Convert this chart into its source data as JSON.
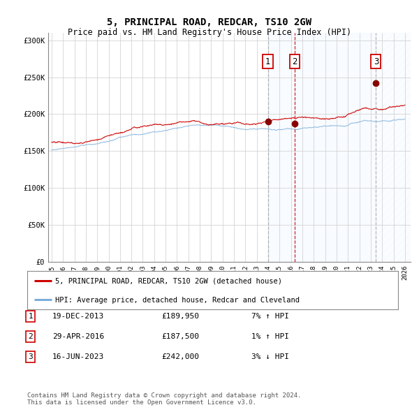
{
  "title": "5, PRINCIPAL ROAD, REDCAR, TS10 2GW",
  "subtitle": "Price paid vs. HM Land Registry's House Price Index (HPI)",
  "ylim": [
    0,
    310000
  ],
  "yticks": [
    0,
    50000,
    100000,
    150000,
    200000,
    250000,
    300000
  ],
  "ytick_labels": [
    "£0",
    "£50K",
    "£100K",
    "£150K",
    "£200K",
    "£250K",
    "£300K"
  ],
  "sale_dates_num": [
    2013.97,
    2016.33,
    2023.46
  ],
  "sale_prices": [
    189950,
    187500,
    242000
  ],
  "sale_labels": [
    "1",
    "2",
    "3"
  ],
  "sale_info": [
    {
      "num": "1",
      "date": "19-DEC-2013",
      "price": "£189,950",
      "hpi": "7% ↑ HPI"
    },
    {
      "num": "2",
      "date": "29-APR-2016",
      "price": "£187,500",
      "hpi": "1% ↑ HPI"
    },
    {
      "num": "3",
      "date": "16-JUN-2023",
      "price": "£242,000",
      "hpi": "3% ↓ HPI"
    }
  ],
  "legend_line1": "5, PRINCIPAL ROAD, REDCAR, TS10 2GW (detached house)",
  "legend_line2": "HPI: Average price, detached house, Redcar and Cleveland",
  "footnote": "Contains HM Land Registry data © Crown copyright and database right 2024.\nThis data is licensed under the Open Government Licence v3.0.",
  "red_color": "#cc0000",
  "blue_color": "#7aaddb",
  "shade_color": "#ddeeff",
  "line_dash_color_1": "#aaaaaa",
  "line_dash_color_2": "#cc0000",
  "line_dash_color_3": "#aaaaaa",
  "background_color": "#ffffff",
  "xlim_start": 1994.7,
  "xlim_end": 2026.5
}
